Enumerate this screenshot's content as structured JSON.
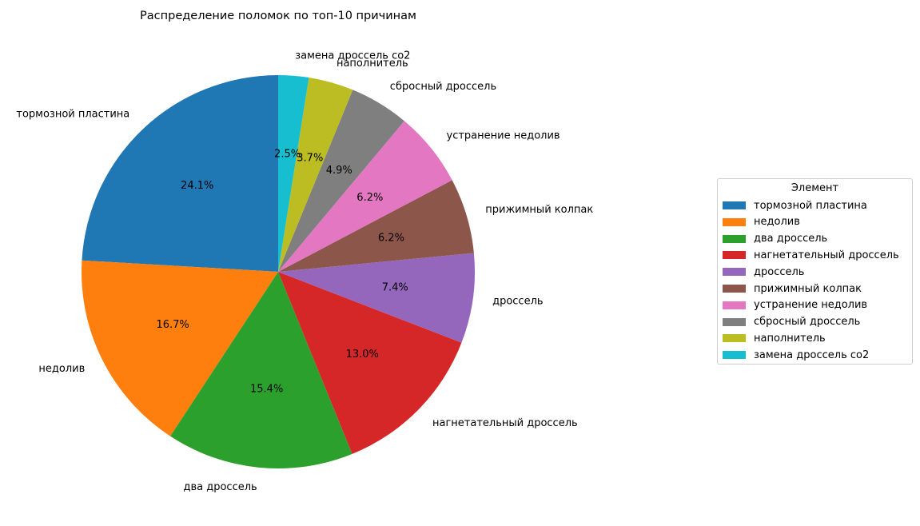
{
  "chart_data": {
    "type": "pie",
    "title": "Распределение поломок по топ-10 причинам",
    "legend": {
      "title": "Элемент",
      "position": "right"
    },
    "start_angle_deg": 90,
    "direction": "counterclockwise",
    "slices": [
      {
        "label": "тормозной пластина",
        "percent": 24.1,
        "pct_label": "24.1%",
        "color": "#1f77b4"
      },
      {
        "label": "недолив",
        "percent": 16.7,
        "pct_label": "16.7%",
        "color": "#ff7f0e"
      },
      {
        "label": "два дроссель",
        "percent": 15.4,
        "pct_label": "15.4%",
        "color": "#2ca02c"
      },
      {
        "label": "нагнетательный дроссель",
        "percent": 13.0,
        "pct_label": "13.0%",
        "color": "#d62728"
      },
      {
        "label": "дроссель",
        "percent": 7.4,
        "pct_label": "7.4%",
        "color": "#9467bd"
      },
      {
        "label": "прижимный колпак",
        "percent": 6.2,
        "pct_label": "6.2%",
        "color": "#8c564b"
      },
      {
        "label": "устранение недолив",
        "percent": 6.2,
        "pct_label": "6.2%",
        "color": "#e377c2"
      },
      {
        "label": "сбросный дроссель",
        "percent": 4.9,
        "pct_label": "4.9%",
        "color": "#7f7f7f"
      },
      {
        "label": "наполнитель",
        "percent": 3.7,
        "pct_label": "3.7%",
        "color": "#bcbd22"
      },
      {
        "label": "замена дроссель со2",
        "percent": 2.5,
        "pct_label": "2.5%",
        "color": "#17becf"
      }
    ]
  }
}
